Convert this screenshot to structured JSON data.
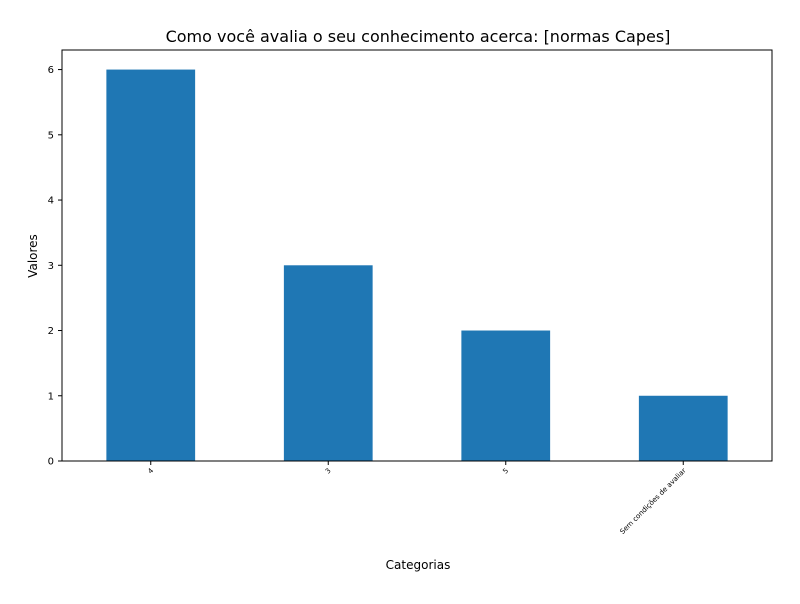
{
  "chart_data": {
    "type": "bar",
    "title": "Como você avalia o seu conhecimento acerca: [normas Capes]",
    "xlabel": "Categorias",
    "ylabel": "Valores",
    "categories": [
      "4",
      "3",
      "5",
      "Sem condições de avaliar"
    ],
    "values": [
      6,
      3,
      2,
      1
    ],
    "ylim": [
      0,
      6.3
    ],
    "yticks": [
      0,
      1,
      2,
      3,
      4,
      5,
      6
    ],
    "grid": false,
    "legend": "none",
    "bar_color": "#1f77b4",
    "xtick_rotation_deg": 45
  }
}
